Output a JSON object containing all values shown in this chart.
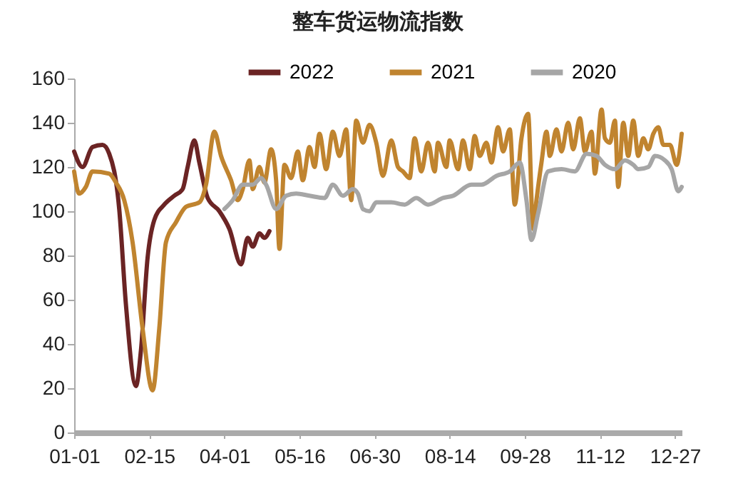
{
  "chart_data": {
    "type": "line",
    "title": "整车货运物流指数",
    "legend": "top",
    "grid": false,
    "xlim": [
      "--01-01",
      "--12-31"
    ],
    "xticks": [
      {
        "value": "--01-01",
        "label": "01-01"
      },
      {
        "value": "--02-15",
        "label": "02-15"
      },
      {
        "value": "--04-01",
        "label": "04-01"
      },
      {
        "value": "--05-16",
        "label": "05-16"
      },
      {
        "value": "--06-30",
        "label": "06-30"
      },
      {
        "value": "--08-14",
        "label": "08-14"
      },
      {
        "value": "--09-28",
        "label": "09-28"
      },
      {
        "value": "--11-12",
        "label": "11-12"
      },
      {
        "value": "--12-27",
        "label": "12-27"
      }
    ],
    "ylim": [
      0,
      160
    ],
    "yticks": [
      0,
      20,
      40,
      60,
      80,
      100,
      120,
      140,
      160
    ],
    "series": [
      {
        "name": "2022",
        "color": "#6b2424",
        "x": [
          "--01-01",
          "--01-06",
          "--01-12",
          "--01-18",
          "--01-22",
          "--01-28",
          "--02-01",
          "--02-07",
          "--02-10",
          "--02-14",
          "--02-18",
          "--02-24",
          "--03-02",
          "--03-07",
          "--03-10",
          "--03-14",
          "--03-17",
          "--03-22",
          "--03-29",
          "--04-04",
          "--04-11",
          "--04-15",
          "--04-18",
          "--04-22",
          "--04-25",
          "--04-28"
        ],
        "values": [
          127,
          120,
          129,
          130,
          126,
          101,
          58,
          21,
          37,
          79,
          96,
          103,
          107,
          110,
          120,
          132,
          122,
          106,
          100,
          92,
          76,
          88,
          84,
          90,
          88,
          91
        ]
      },
      {
        "name": "2021",
        "color": "#c0842f",
        "x": [
          "--01-01",
          "--01-04",
          "--01-08",
          "--01-12",
          "--01-22",
          "--01-26",
          "--01-31",
          "--02-05",
          "--02-11",
          "--02-17",
          "--02-21",
          "--02-25",
          "--03-03",
          "--03-09",
          "--03-17",
          "--03-21",
          "--03-26",
          "--03-30",
          "--04-05",
          "--04-09",
          "--04-12",
          "--04-16",
          "--04-18",
          "--04-22",
          "--04-25",
          "--04-29",
          "--05-02",
          "--05-04",
          "--05-07",
          "--05-11",
          "--05-15",
          "--05-18",
          "--05-22",
          "--05-25",
          "--05-28",
          "--06-01",
          "--06-05",
          "--06-09",
          "--06-13",
          "--06-16",
          "--06-19",
          "--06-23",
          "--06-27",
          "--07-01",
          "--07-05",
          "--07-10",
          "--07-14",
          "--07-17",
          "--07-21",
          "--07-24",
          "--07-28",
          "--08-01",
          "--08-05",
          "--08-07",
          "--08-12",
          "--08-14",
          "--08-19",
          "--08-22",
          "--08-26",
          "--08-29",
          "--09-01",
          "--09-05",
          "--09-08",
          "--09-12",
          "--09-15",
          "--09-19",
          "--09-22",
          "--09-26",
          "--09-30",
          "--10-03",
          "--10-05",
          "--10-08",
          "--10-11",
          "--10-13",
          "--10-17",
          "--10-20",
          "--10-24",
          "--10-27",
          "--10-31",
          "--11-03",
          "--11-07",
          "--11-09",
          "--11-13",
          "--11-15",
          "--11-18",
          "--11-21",
          "--11-23",
          "--11-26",
          "--11-29",
          "--12-02",
          "--12-05",
          "--12-08",
          "--12-11",
          "--12-14",
          "--12-17",
          "--12-20",
          "--12-24",
          "--12-28",
          "--12-31"
        ],
        "values": [
          118,
          108,
          111,
          118,
          117,
          113,
          105,
          86,
          47,
          19,
          47,
          86,
          95,
          102,
          104,
          112,
          136,
          125,
          114,
          105,
          110,
          123,
          110,
          120,
          113,
          128,
          114,
          83,
          121,
          115,
          127,
          114,
          129,
          120,
          135,
          119,
          136,
          125,
          137,
          105,
          141,
          131,
          139,
          131,
          116,
          132,
          120,
          118,
          115,
          133,
          118,
          131,
          118,
          131,
          120,
          132,
          119,
          132,
          119,
          134,
          125,
          131,
          122,
          138,
          127,
          137,
          103,
          133,
          144,
          92,
          105,
          122,
          136,
          125,
          137,
          127,
          140,
          128,
          142,
          127,
          136,
          117,
          146,
          133,
          131,
          141,
          111,
          140,
          125,
          141,
          125,
          133,
          128,
          135,
          138,
          130,
          130,
          121,
          135
        ]
      },
      {
        "name": "2020",
        "color": "#a6a6a6",
        "x": [
          "--04-01",
          "--04-06",
          "--04-12",
          "--04-18",
          "--04-23",
          "--04-26",
          "--05-02",
          "--05-08",
          "--05-14",
          "--05-22",
          "--05-31",
          "--06-05",
          "--06-11",
          "--06-17",
          "--06-20",
          "--06-23",
          "--06-27",
          "--07-01",
          "--07-10",
          "--07-18",
          "--07-25",
          "--08-01",
          "--08-10",
          "--08-16",
          "--08-27",
          "--09-02",
          "--09-11",
          "--09-19",
          "--09-25",
          "--09-29",
          "--10-02",
          "--10-06",
          "--10-12",
          "--10-20",
          "--10-28",
          "--11-04",
          "--11-10",
          "--11-15",
          "--11-21",
          "--11-27",
          "--12-02",
          "--12-05",
          "--12-11",
          "--12-15",
          "--12-21",
          "--12-25",
          "--12-29",
          "--12-31"
        ],
        "values": [
          101,
          105,
          112,
          112,
          115,
          112,
          101,
          107,
          108,
          107,
          106,
          112,
          107,
          110,
          108,
          101,
          100,
          104,
          104,
          103,
          106,
          103,
          106,
          107,
          112,
          112,
          116,
          118,
          122,
          105,
          87,
          99,
          118,
          119,
          118,
          126,
          125,
          121,
          119,
          123,
          121,
          119,
          120,
          125,
          123,
          119,
          109,
          111
        ]
      }
    ]
  }
}
